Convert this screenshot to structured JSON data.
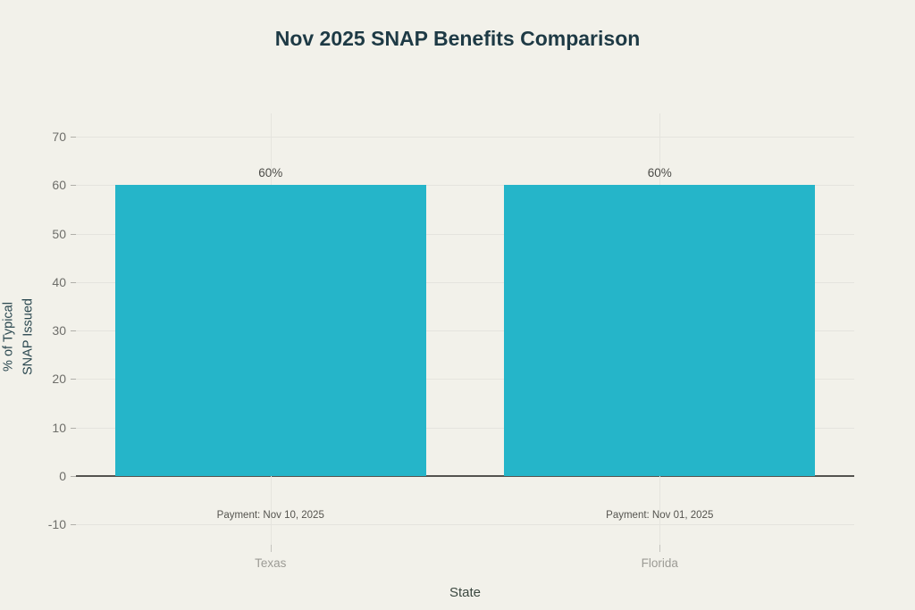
{
  "title": "Nov 2025 SNAP Benefits Comparison",
  "chart_data": {
    "type": "bar",
    "title": "Nov 2025 SNAP Benefits Comparison",
    "categories": [
      "Texas",
      "Florida"
    ],
    "values": [
      60,
      60
    ],
    "bar_labels": [
      "60%",
      "60%"
    ],
    "annotations": [
      "Payment: Nov 10, 2025",
      "Payment: Nov 01, 2025"
    ],
    "xlabel": "State",
    "ylabel_lines": [
      "% of Typical",
      "SNAP Issued"
    ],
    "yticks": [
      70,
      60,
      50,
      40,
      30,
      20,
      10,
      0,
      -10
    ],
    "ylim": [
      -14,
      75
    ],
    "grid": true,
    "legend_position": "none",
    "colors": {
      "bar": "#25b5c9",
      "background": "#f2f1ea",
      "gridline": "#e5e4de",
      "zero_line": "#54534f",
      "title_text": "#1e3a45",
      "tick_label_text": "#6e6e6a",
      "category_label_text": "#9c9b95"
    }
  }
}
